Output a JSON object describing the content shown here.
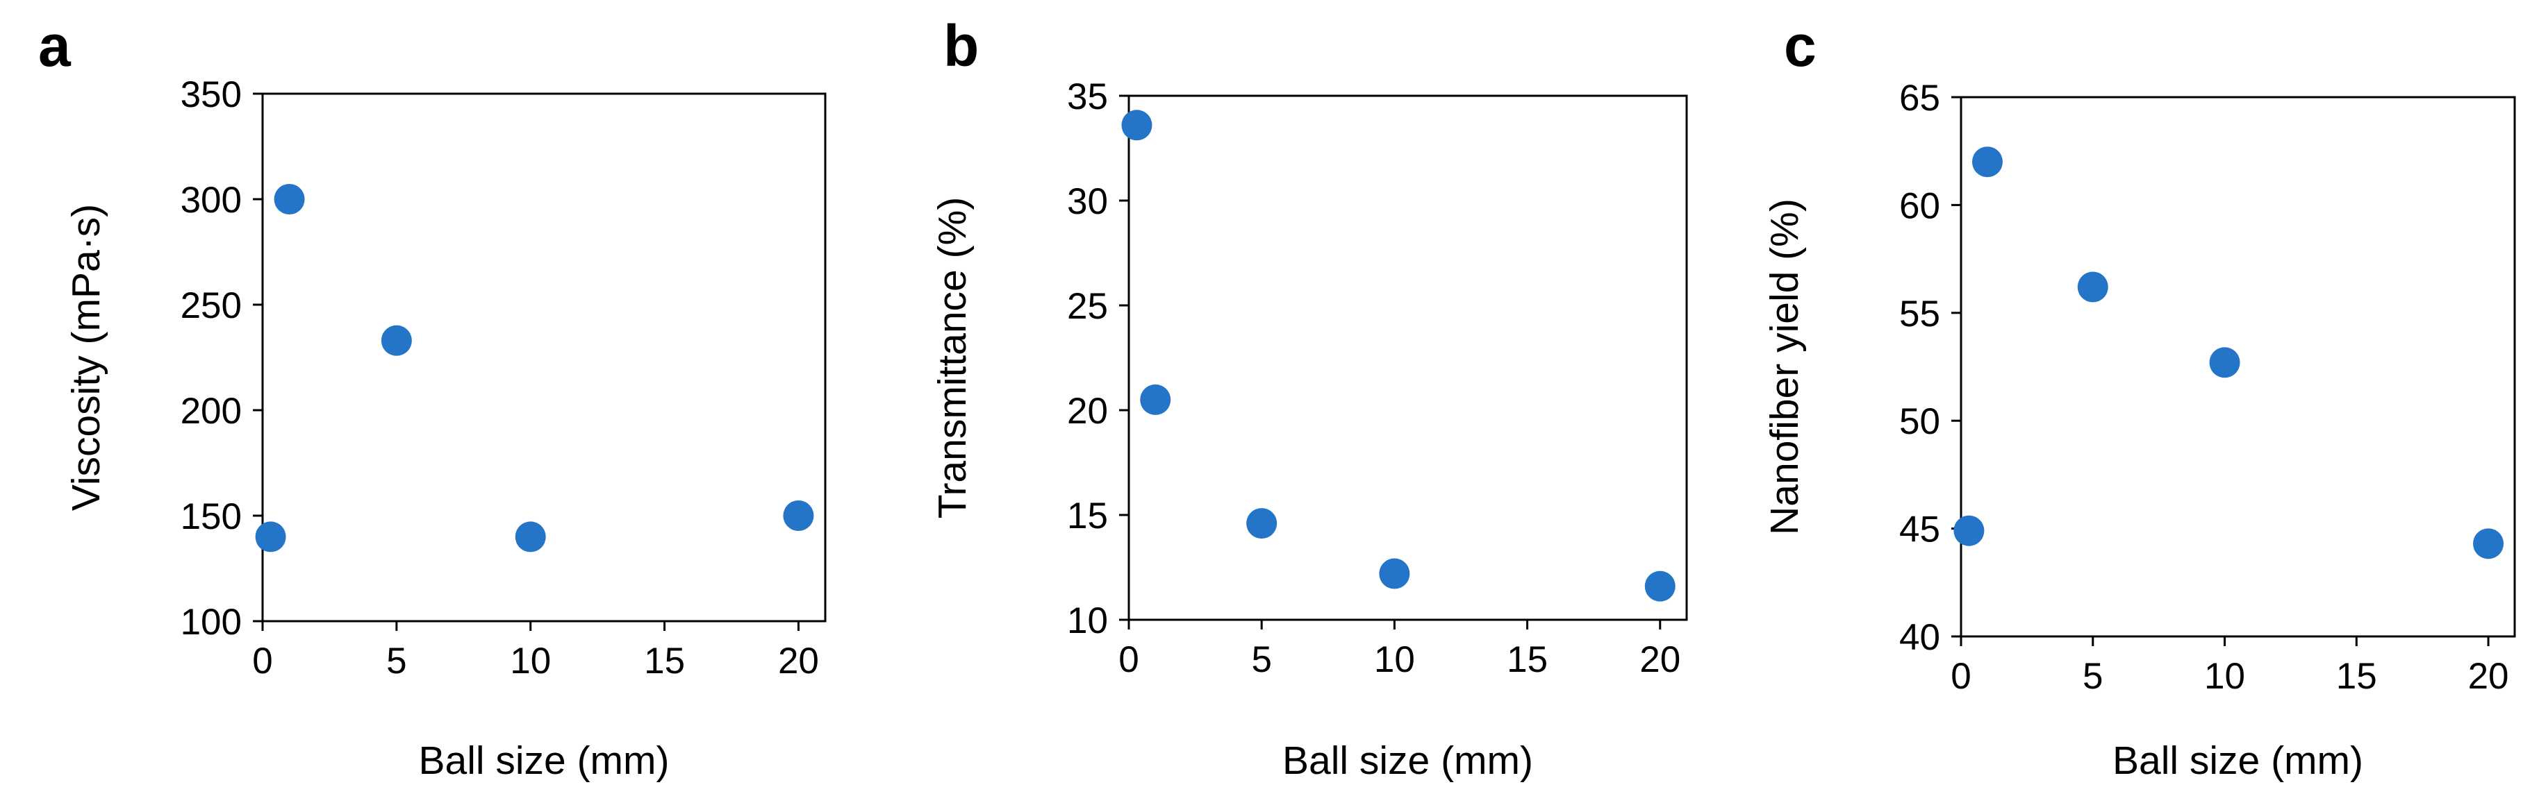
{
  "colors": {
    "marker": "#2474C8",
    "axis": "#000000",
    "background": "#FFFFFF"
  },
  "chart_data": [
    {
      "type": "scatter",
      "panel_label": "a",
      "xlabel": "Ball size (mm)",
      "ylabel": "Viscosity (mPa·s)",
      "xlim": [
        0,
        21
      ],
      "ylim": [
        100,
        350
      ],
      "xticks": [
        0,
        5,
        10,
        15,
        20
      ],
      "yticks": [
        100,
        150,
        200,
        250,
        300,
        350
      ],
      "grid": false,
      "series": [
        {
          "points": [
            {
              "x": 0.3,
              "y": 140
            },
            {
              "x": 1,
              "y": 300
            },
            {
              "x": 5,
              "y": 233
            },
            {
              "x": 10,
              "y": 140
            },
            {
              "x": 20,
              "y": 150
            }
          ]
        }
      ]
    },
    {
      "type": "scatter",
      "panel_label": "b",
      "xlabel": "Ball size (mm)",
      "ylabel": "Transmittance (%)",
      "xlim": [
        0,
        21
      ],
      "ylim": [
        10,
        35
      ],
      "xticks": [
        0,
        5,
        10,
        15,
        20
      ],
      "yticks": [
        10,
        15,
        20,
        25,
        30,
        35
      ],
      "grid": false,
      "series": [
        {
          "points": [
            {
              "x": 0.3,
              "y": 33.6
            },
            {
              "x": 1,
              "y": 20.5
            },
            {
              "x": 5,
              "y": 14.6
            },
            {
              "x": 10,
              "y": 12.2
            },
            {
              "x": 20,
              "y": 11.6
            }
          ]
        }
      ]
    },
    {
      "type": "scatter",
      "panel_label": "c",
      "xlabel": "Ball size (mm)",
      "ylabel": "Nanofiber yield (%)",
      "xlim": [
        0,
        21
      ],
      "ylim": [
        40,
        65
      ],
      "xticks": [
        0,
        5,
        10,
        15,
        20
      ],
      "yticks": [
        40,
        45,
        50,
        55,
        60,
        65
      ],
      "grid": false,
      "series": [
        {
          "points": [
            {
              "x": 0.3,
              "y": 44.9
            },
            {
              "x": 1,
              "y": 62
            },
            {
              "x": 5,
              "y": 56.2
            },
            {
              "x": 10,
              "y": 52.7
            },
            {
              "x": 20,
              "y": 44.3
            }
          ]
        }
      ]
    }
  ]
}
